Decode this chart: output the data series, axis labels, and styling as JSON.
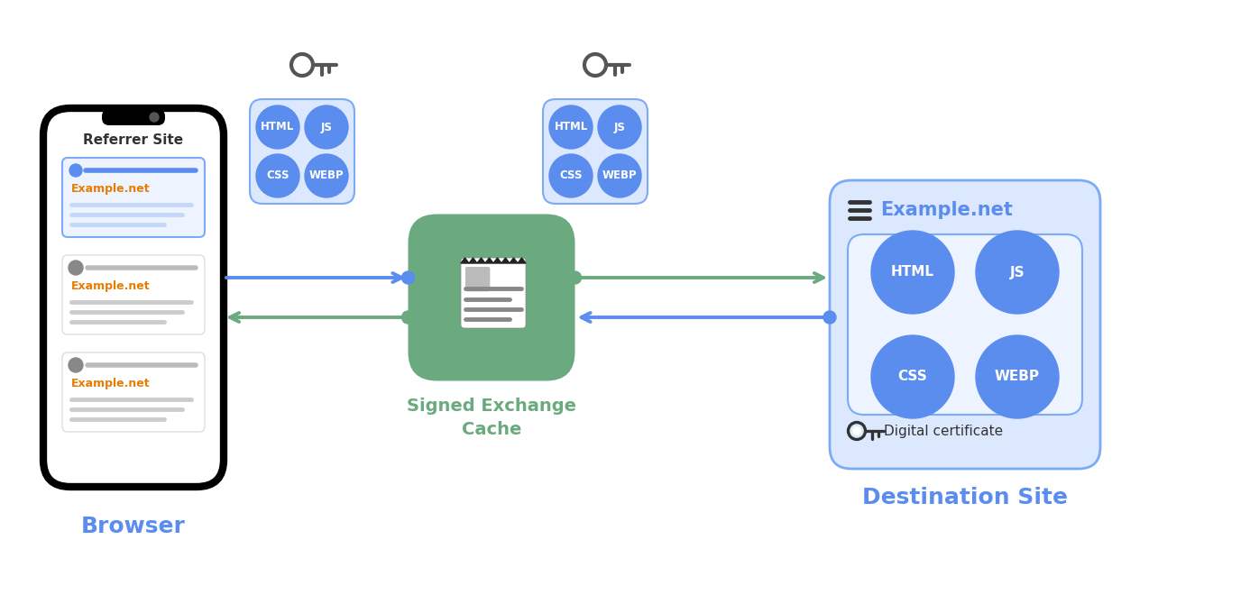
{
  "bg_color": "#ffffff",
  "blue_circle_color": "#5b8dee",
  "green_box_color": "#6aaa7e",
  "light_blue_box_color": "#dce8fd",
  "light_blue_border_color": "#7baaf7",
  "arrow_blue_color": "#5b8dee",
  "arrow_green_color": "#6aaa7e",
  "label_browser": "Browser",
  "label_cache": "Signed Exchange\nCache",
  "label_dest": "Destination Site",
  "label_referrer": "Referrer Site",
  "label_example": "Example.net",
  "label_digital_cert": "Digital certificate",
  "tech_labels": [
    "HTML",
    "JS",
    "CSS",
    "WEBP"
  ],
  "label_color": "#5b8dee",
  "text_color_dark": "#333333",
  "hamburger_color": "#5b8dee",
  "card_border_color_first": "#7baaf7",
  "card_bg_first": "#edf3ff",
  "example_net_color_card1": "#e67c00",
  "example_net_color_others": "#e67c00",
  "referrer_site_color": "#333333",
  "green_dot_color": "#6aaa7e",
  "blue_dot_color": "#5b8dee",
  "key_color": "#555555",
  "gray_line_color": "#cccccc",
  "gray_text_color": "#aaaaaa"
}
